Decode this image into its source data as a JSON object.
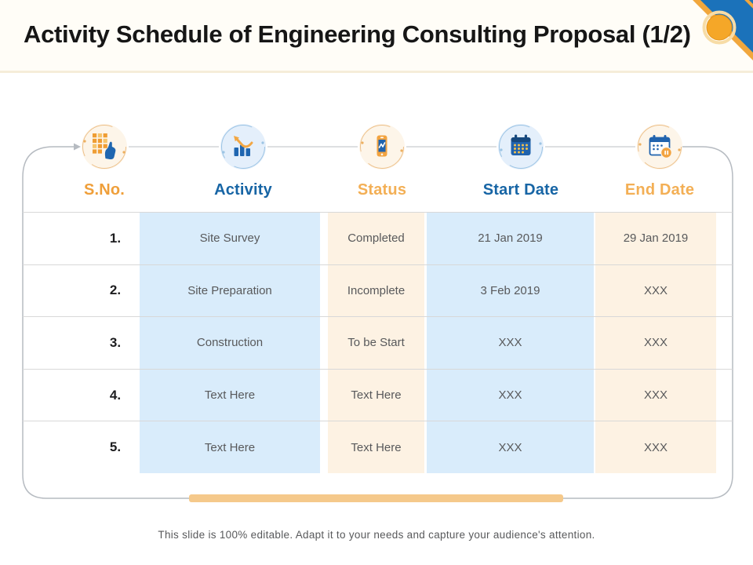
{
  "slide": {
    "title": "Activity Schedule of Engineering Consulting Proposal (1/2)",
    "footer": "This slide is 100% editable. Adapt it to your needs and capture your audience's attention."
  },
  "table": {
    "columns": [
      {
        "label": "S.No.",
        "icon": "keypad-tally-icon",
        "accent": "#EF9F3A"
      },
      {
        "label": "Activity",
        "icon": "bar-chart-trend-icon",
        "accent": "#1765A5"
      },
      {
        "label": "Status",
        "icon": "phone-status-icon",
        "accent": "#F3AF55"
      },
      {
        "label": "Start Date",
        "icon": "calendar-start-icon",
        "accent": "#1765A5"
      },
      {
        "label": "End Date",
        "icon": "calendar-pause-icon",
        "accent": "#F3AF55"
      }
    ],
    "rows": [
      {
        "sno": "1.",
        "activity": "Site Survey",
        "status": "Completed",
        "start": "21 Jan 2019",
        "end": "29 Jan 2019"
      },
      {
        "sno": "2.",
        "activity": "Site Preparation",
        "status": "Incomplete",
        "start": "3 Feb 2019",
        "end": "XXX"
      },
      {
        "sno": "3.",
        "activity": "Construction",
        "status": "To be Start",
        "start": "XXX",
        "end": "XXX"
      },
      {
        "sno": "4.",
        "activity": "Text Here",
        "status": "Text Here",
        "start": "XXX",
        "end": "XXX"
      },
      {
        "sno": "5.",
        "activity": "Text Here",
        "status": "Text Here",
        "start": "XXX",
        "end": "XXX"
      }
    ]
  },
  "colors": {
    "column_blue": "#D9ECFB",
    "column_cream": "#FDF2E3",
    "accent_orange": "#EF9F3A",
    "accent_blue": "#1765A5",
    "bottom_bar": "#F5C98B",
    "ribbon_blue": "#1B72BA",
    "ribbon_orange": "#F1A73D",
    "frame_gray": "#B6BBC1",
    "row_line": "#D8D8D8"
  }
}
